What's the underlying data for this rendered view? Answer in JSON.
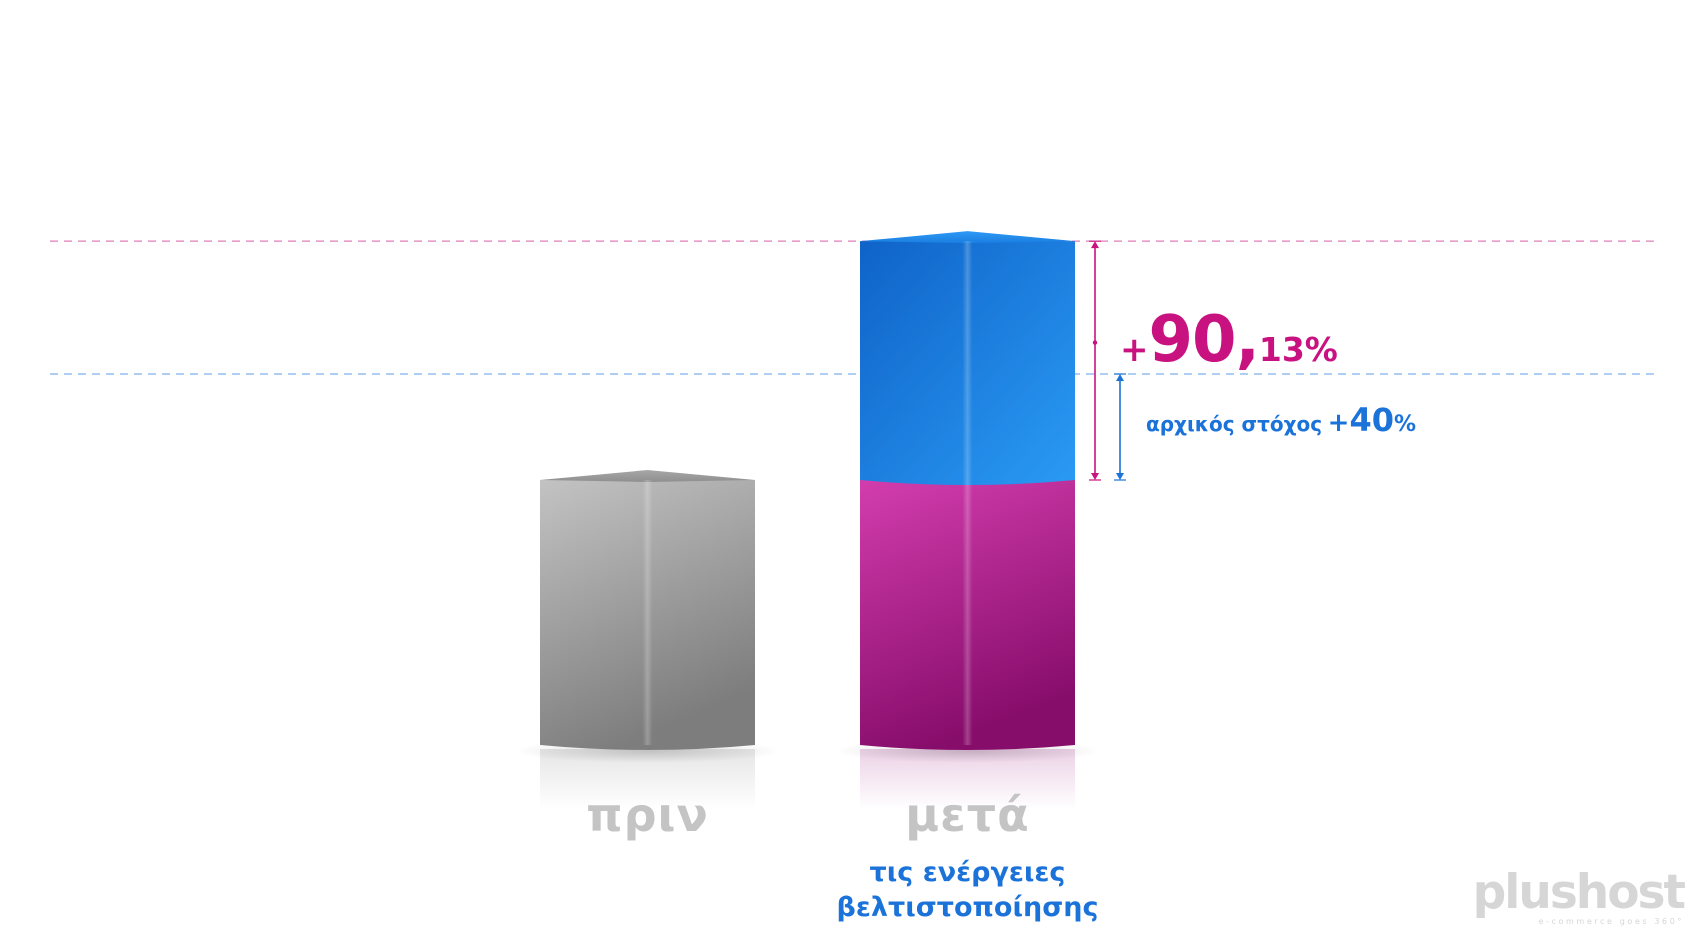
{
  "chart_data": {
    "type": "bar",
    "title": "",
    "xlabel": "",
    "ylabel": "",
    "ylim": [
      0,
      2.5
    ],
    "categories": [
      "πριν",
      "μετά"
    ],
    "category_subtitles": [
      "",
      "τις ενέργειες βελτιστοποίησης"
    ],
    "category_subtitle_lines": [
      "τις ενέργειες",
      "βελτιστοποίησης"
    ],
    "series": [
      {
        "name": "before",
        "stacks": [
          {
            "value": 1.0,
            "color": "#9a9a9a"
          }
        ]
      },
      {
        "name": "after",
        "stacks": [
          {
            "value": 1.0,
            "color": "#b72a9c"
          },
          {
            "value": 0.9013,
            "color": "#1f86e6"
          }
        ]
      }
    ],
    "annotations": {
      "total_increase": {
        "plus": "+",
        "int": "90,",
        "dec": "13%",
        "value_pct": 90.13,
        "color": "#c8127f"
      },
      "initial_target": {
        "label": "αρχικός στόχος",
        "plus": "+",
        "int": "40",
        "pct": "%",
        "value_pct": 40,
        "color": "#1b73d9"
      }
    },
    "grid": true,
    "legend": "none"
  },
  "brand": {
    "logo_word": "plushost",
    "logo_tagline": "e-commerce goes 360°"
  }
}
